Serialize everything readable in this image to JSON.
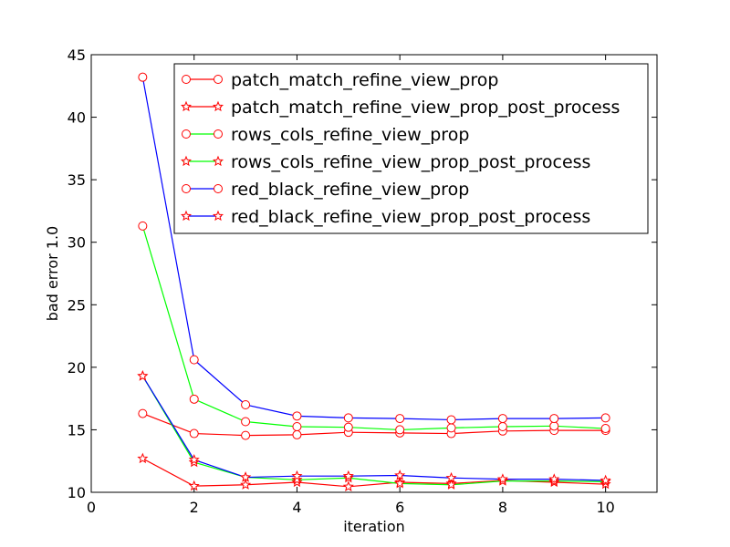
{
  "chart_data": {
    "type": "line",
    "title": "",
    "xlabel": "iteration",
    "ylabel": "bad error 1.0",
    "xlim": [
      0,
      11
    ],
    "ylim": [
      10,
      45
    ],
    "xticks": [
      "0",
      "2",
      "4",
      "6",
      "8",
      "10"
    ],
    "yticks": [
      "10",
      "15",
      "20",
      "25",
      "30",
      "35",
      "40",
      "45"
    ],
    "grid": false,
    "legend_position": "top-right",
    "x": [
      1,
      2,
      3,
      4,
      5,
      6,
      7,
      8,
      9,
      10
    ],
    "series": [
      {
        "name": "patch_match_refine_view_prop",
        "color": "#ff0000",
        "marker": "circle",
        "values": [
          16.3,
          14.7,
          14.55,
          14.6,
          14.8,
          14.75,
          14.7,
          14.9,
          14.95,
          14.95
        ]
      },
      {
        "name": "patch_match_refine_view_prop_post_process",
        "color": "#ff0000",
        "marker": "star",
        "values": [
          12.7,
          10.5,
          10.6,
          10.8,
          10.45,
          10.8,
          10.7,
          10.95,
          10.8,
          10.65
        ]
      },
      {
        "name": "rows_cols_refine_view_prop",
        "color": "#00ff00",
        "marker": "circle",
        "values": [
          31.3,
          17.45,
          15.65,
          15.25,
          15.2,
          15.0,
          15.15,
          15.25,
          15.3,
          15.1
        ]
      },
      {
        "name": "rows_cols_refine_view_prop_post_process",
        "color": "#00ff00",
        "marker": "star",
        "values": [
          19.3,
          12.4,
          11.2,
          11.0,
          11.15,
          10.7,
          10.6,
          10.9,
          10.9,
          10.85
        ]
      },
      {
        "name": "red_black_refine_view_prop",
        "color": "#0000ff",
        "marker": "circle",
        "values": [
          43.2,
          20.6,
          17.0,
          16.1,
          15.95,
          15.9,
          15.8,
          15.9,
          15.9,
          15.95
        ]
      },
      {
        "name": "red_black_refine_view_prop_post_process",
        "color": "#0000ff",
        "marker": "star",
        "values": [
          19.3,
          12.6,
          11.2,
          11.3,
          11.3,
          11.35,
          11.15,
          11.05,
          11.05,
          10.95
        ]
      }
    ]
  }
}
